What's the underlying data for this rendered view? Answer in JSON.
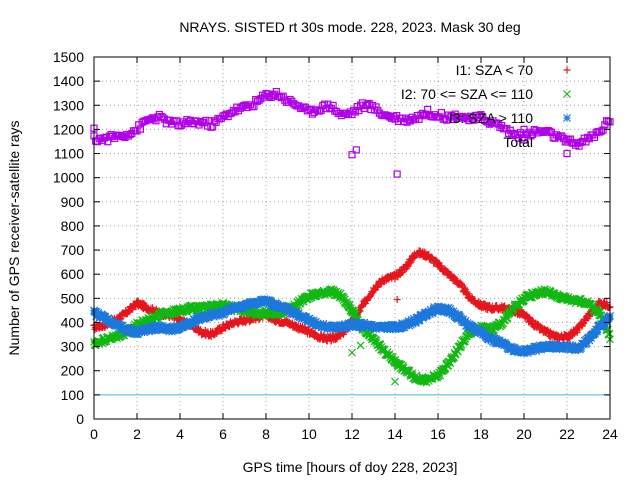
{
  "chart_data": {
    "type": "scatter",
    "title": "NRAYS. SISTED rt 30s mode. 228, 2023. Mask 30 deg",
    "xlabel": "GPS time [hours of doy 228, 2023]",
    "ylabel": "Number of GPS receiver-satellite rays",
    "xlim": [
      0,
      24
    ],
    "ylim": [
      0,
      1500
    ],
    "xticks": [
      0,
      2,
      4,
      6,
      8,
      10,
      12,
      14,
      16,
      18,
      20,
      22,
      24
    ],
    "yticks": [
      0,
      100,
      200,
      300,
      400,
      500,
      600,
      700,
      800,
      900,
      1000,
      1100,
      1200,
      1300,
      1400,
      1500
    ],
    "grid": true,
    "legend_position": "top-right",
    "reference_line": {
      "y": 100,
      "color": "#40c0e0"
    },
    "series": [
      {
        "name": "I1: SZA < 70",
        "marker": "+",
        "color": "#e8141c",
        "x": [
          0,
          0.5,
          1,
          1.5,
          2,
          2.5,
          3,
          3.5,
          4,
          4.5,
          5,
          5.5,
          6,
          6.5,
          7,
          7.5,
          8,
          8.5,
          9,
          9.5,
          10,
          10.5,
          11,
          11.5,
          12,
          12.5,
          13,
          13.5,
          14,
          14.5,
          15,
          15.5,
          16,
          16.5,
          17,
          17.5,
          18,
          18.5,
          19,
          19.5,
          20,
          20.5,
          21,
          21.5,
          22,
          22.5,
          23,
          23.5,
          24
        ],
        "y": [
          380,
          390,
          410,
          440,
          480,
          460,
          440,
          430,
          410,
          390,
          360,
          350,
          380,
          400,
          410,
          420,
          430,
          410,
          400,
          380,
          360,
          340,
          330,
          350,
          400,
          470,
          540,
          580,
          590,
          630,
          690,
          680,
          640,
          600,
          560,
          500,
          470,
          460,
          460,
          450,
          430,
          390,
          360,
          340,
          340,
          370,
          430,
          480,
          470
        ],
        "outliers": [
          {
            "x": 14.1,
            "y": 495
          }
        ]
      },
      {
        "name": "I2: 70 <= SZA <= 110",
        "marker": "x",
        "color": "#12b812",
        "x": [
          0,
          0.5,
          1,
          1.5,
          2,
          2.5,
          3,
          3.5,
          4,
          4.5,
          5,
          5.5,
          6,
          6.5,
          7,
          7.5,
          8,
          8.5,
          9,
          9.5,
          10,
          10.5,
          11,
          11.5,
          12,
          12.5,
          13,
          13.5,
          14,
          14.5,
          15,
          15.5,
          16,
          16.5,
          17,
          17.5,
          18,
          18.5,
          19,
          19.5,
          20,
          20.5,
          21,
          21.5,
          22,
          22.5,
          23,
          23.5,
          24
        ],
        "y": [
          310,
          330,
          340,
          360,
          390,
          410,
          430,
          440,
          450,
          460,
          460,
          470,
          470,
          460,
          450,
          440,
          440,
          440,
          450,
          480,
          510,
          520,
          530,
          510,
          450,
          370,
          330,
          280,
          240,
          200,
          170,
          160,
          180,
          230,
          300,
          360,
          380,
          370,
          400,
          460,
          500,
          520,
          530,
          510,
          500,
          490,
          480,
          440,
          340
        ],
        "outliers": [
          {
            "x": 12,
            "y": 275
          },
          {
            "x": 12.4,
            "y": 305
          },
          {
            "x": 14,
            "y": 155
          }
        ]
      },
      {
        "name": "I3: SZA > 110",
        "marker": "*",
        "color": "#1c78dc",
        "x": [
          0,
          0.5,
          1,
          1.5,
          2,
          2.5,
          3,
          3.5,
          4,
          4.5,
          5,
          5.5,
          6,
          6.5,
          7,
          7.5,
          8,
          8.5,
          9,
          9.5,
          10,
          10.5,
          11,
          11.5,
          12,
          12.5,
          13,
          13.5,
          14,
          14.5,
          15,
          15.5,
          16,
          16.5,
          17,
          17.5,
          18,
          18.5,
          19,
          19.5,
          20,
          20.5,
          21,
          21.5,
          22,
          22.5,
          23,
          23.5,
          24
        ],
        "y": [
          440,
          420,
          390,
          370,
          360,
          370,
          380,
          370,
          380,
          400,
          420,
          430,
          440,
          460,
          470,
          480,
          490,
          470,
          450,
          430,
          410,
          390,
          380,
          380,
          390,
          390,
          380,
          380,
          380,
          390,
          410,
          440,
          460,
          450,
          420,
          380,
          360,
          330,
          310,
          290,
          280,
          290,
          300,
          300,
          300,
          290,
          330,
          380,
          420
        ],
        "outliers": []
      },
      {
        "name": "Total",
        "marker": "square",
        "color": "#b000e8",
        "x": [
          0,
          0.5,
          1,
          1.5,
          2,
          2.5,
          3,
          3.5,
          4,
          4.5,
          5,
          5.5,
          6,
          6.5,
          7,
          7.5,
          8,
          8.5,
          9,
          9.5,
          10,
          10.5,
          11,
          11.5,
          12,
          12.5,
          13,
          13.5,
          14,
          14.5,
          15,
          15.5,
          16,
          16.5,
          17,
          17.5,
          18,
          18.5,
          19,
          19.5,
          20,
          20.5,
          21,
          21.5,
          22,
          22.5,
          23,
          23.5,
          24
        ],
        "y": [
          1160,
          1160,
          1170,
          1180,
          1200,
          1240,
          1250,
          1230,
          1220,
          1230,
          1230,
          1220,
          1250,
          1280,
          1290,
          1310,
          1340,
          1350,
          1320,
          1300,
          1270,
          1290,
          1300,
          1260,
          1270,
          1300,
          1290,
          1260,
          1250,
          1240,
          1250,
          1270,
          1260,
          1250,
          1260,
          1240,
          1250,
          1230,
          1210,
          1180,
          1170,
          1190,
          1190,
          1170,
          1150,
          1140,
          1160,
          1190,
          1240
        ],
        "outliers": [
          {
            "x": 0,
            "y": 1205
          },
          {
            "x": 12,
            "y": 1095
          },
          {
            "x": 12.2,
            "y": 1115
          },
          {
            "x": 14.1,
            "y": 1015
          },
          {
            "x": 22,
            "y": 1100
          },
          {
            "x": 20,
            "y": 1200
          }
        ]
      }
    ]
  }
}
